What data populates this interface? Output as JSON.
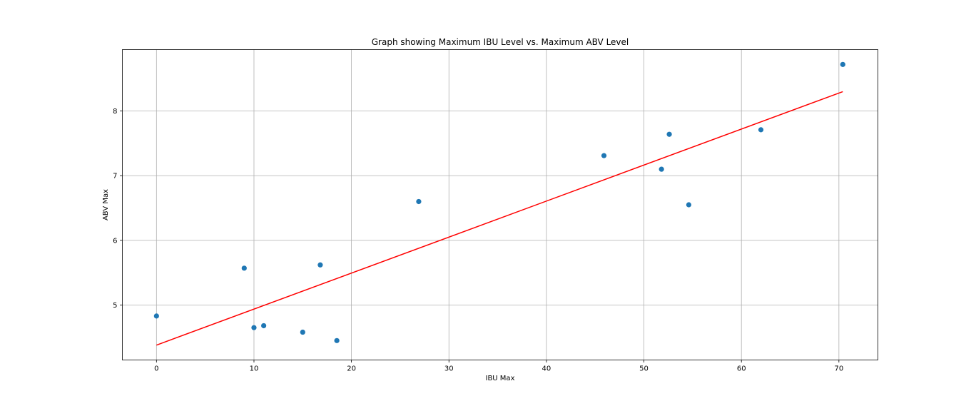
{
  "chart_data": {
    "type": "scatter",
    "title": "Graph showing Maximum IBU Level vs. Maximum ABV Level",
    "xlabel": "IBU Max",
    "ylabel": "ABV Max",
    "xlim": [
      -3.5,
      74
    ],
    "ylim": [
      4.15,
      8.95
    ],
    "x_ticks": [
      0,
      10,
      20,
      30,
      40,
      50,
      60,
      70
    ],
    "y_ticks": [
      5,
      6,
      7,
      8
    ],
    "grid": true,
    "points": [
      {
        "x": 0,
        "y": 4.83
      },
      {
        "x": 9,
        "y": 5.57
      },
      {
        "x": 10,
        "y": 4.65
      },
      {
        "x": 11,
        "y": 4.68
      },
      {
        "x": 15,
        "y": 4.58
      },
      {
        "x": 16.8,
        "y": 5.62
      },
      {
        "x": 18.5,
        "y": 4.45
      },
      {
        "x": 26.9,
        "y": 6.6
      },
      {
        "x": 45.9,
        "y": 7.31
      },
      {
        "x": 51.8,
        "y": 7.1
      },
      {
        "x": 52.6,
        "y": 7.64
      },
      {
        "x": 54.6,
        "y": 6.55
      },
      {
        "x": 62,
        "y": 7.71
      },
      {
        "x": 70.4,
        "y": 8.72
      }
    ],
    "trendline": {
      "x": [
        0,
        70.4
      ],
      "y": [
        4.38,
        8.3
      ]
    },
    "colors": {
      "points": "#1f77b4",
      "trendline": "#ff0000"
    }
  }
}
